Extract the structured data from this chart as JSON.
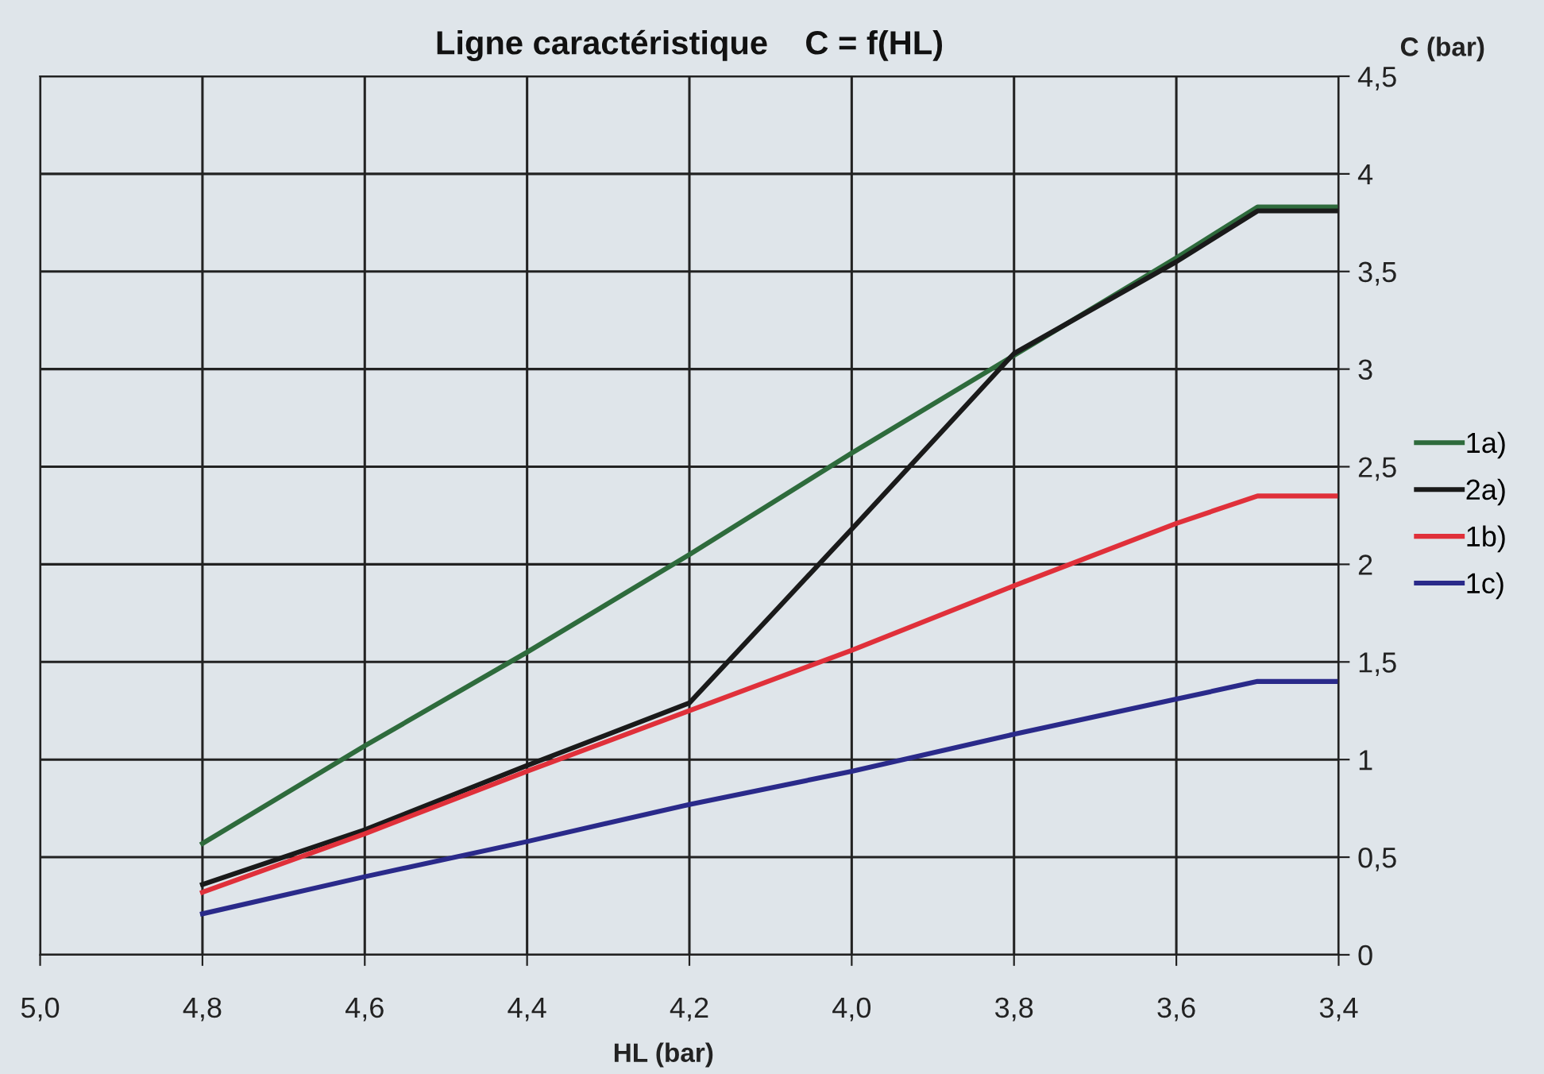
{
  "chart_data": {
    "type": "line",
    "title": "Ligne caractéristique    C = f(HL)",
    "xlabel": "HL (bar)",
    "ylabel": "C (bar)",
    "x": [
      4.8,
      4.6,
      4.4,
      4.2,
      4.0,
      3.8,
      3.6,
      3.5,
      3.4
    ],
    "series": [
      {
        "name": "1a)",
        "color": "#2e6b3c",
        "values": [
          0.57,
          1.07,
          1.55,
          2.05,
          2.57,
          3.07,
          3.57,
          3.83,
          3.83
        ]
      },
      {
        "name": "2a)",
        "color": "#1a1a1a",
        "values": [
          0.36,
          0.64,
          0.97,
          1.29,
          2.18,
          3.08,
          3.55,
          3.81,
          3.81
        ]
      },
      {
        "name": "1b)",
        "color": "#e0303a",
        "values": [
          0.32,
          0.62,
          0.94,
          1.25,
          1.56,
          1.89,
          2.21,
          2.35,
          2.35
        ]
      },
      {
        "name": "1c)",
        "color": "#2a2a8a",
        "values": [
          0.21,
          0.4,
          0.58,
          0.77,
          0.94,
          1.13,
          1.31,
          1.4,
          1.4
        ]
      }
    ],
    "xlim": [
      5.0,
      3.4
    ],
    "ylim": [
      0,
      4.5
    ],
    "xticks": [
      {
        "value": 5.0,
        "label": "5,0"
      },
      {
        "value": 4.8,
        "label": "4,8"
      },
      {
        "value": 4.6,
        "label": "4,6"
      },
      {
        "value": 4.4,
        "label": "4,4"
      },
      {
        "value": 4.2,
        "label": "4,2"
      },
      {
        "value": 4.0,
        "label": "4,0"
      },
      {
        "value": 3.8,
        "label": "3,8"
      },
      {
        "value": 3.6,
        "label": "3,6"
      },
      {
        "value": 3.4,
        "label": "3,4"
      }
    ],
    "yticks": [
      0,
      {
        "value": 0.5,
        "label": "0,5"
      },
      1,
      {
        "value": 1.5,
        "label": "1,5"
      },
      2,
      {
        "value": 2.5,
        "label": "2,5"
      },
      3,
      {
        "value": 3.5,
        "label": "3,5"
      },
      4,
      {
        "value": 4.5,
        "label": "4,5"
      }
    ],
    "grid": true,
    "legend": "right",
    "marker": "none",
    "line_style": "solid"
  }
}
